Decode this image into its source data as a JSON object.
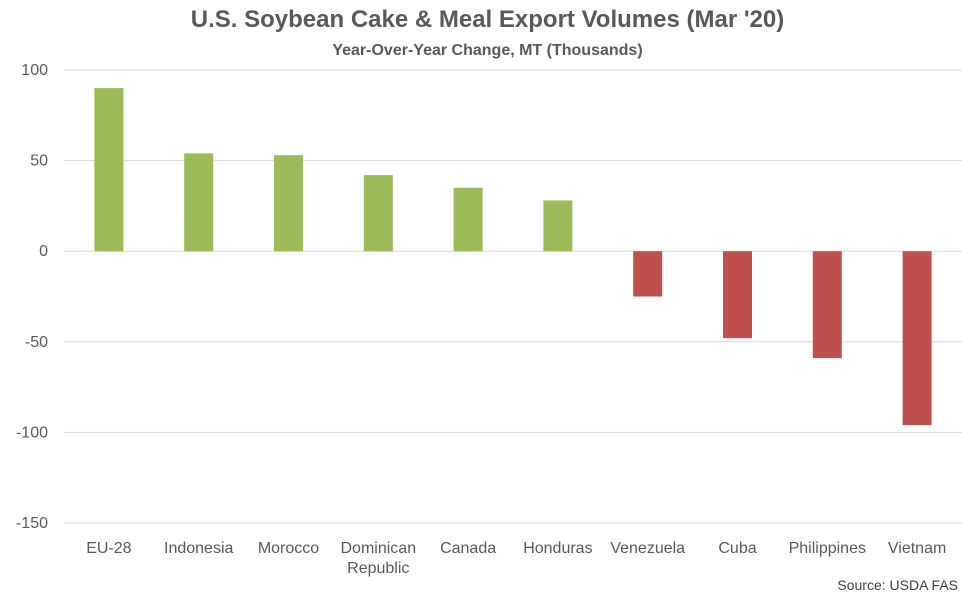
{
  "chart_data": {
    "type": "bar",
    "title": "U.S. Soybean Cake & Meal Export Volumes (Mar '20)",
    "subtitle": "Year-Over-Year Change, MT (Thousands)",
    "categories": [
      [
        "EU-28"
      ],
      [
        "Indonesia"
      ],
      [
        "Morocco"
      ],
      [
        "Dominican",
        "Republic"
      ],
      [
        "Canada"
      ],
      [
        "Honduras"
      ],
      [
        "Venezuela"
      ],
      [
        "Cuba"
      ],
      [
        "Philippines"
      ],
      [
        "Vietnam"
      ]
    ],
    "values": [
      90,
      54,
      53,
      42,
      35,
      28,
      -25,
      -48,
      -59,
      -96
    ],
    "ylim": [
      -150,
      100
    ],
    "yticks": [
      100,
      50,
      0,
      -50,
      -100,
      -150
    ],
    "grid": true,
    "colors": {
      "positive": "#9BBB59",
      "negative": "#C0504D"
    },
    "source": "Source: USDA FAS"
  }
}
